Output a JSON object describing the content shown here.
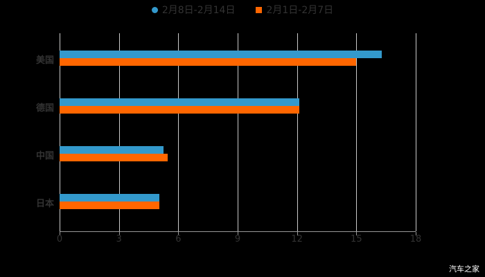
{
  "chart_data": {
    "type": "bar",
    "orientation": "horizontal",
    "title": "",
    "categories": [
      "美国",
      "德国",
      "中国",
      "日本"
    ],
    "series": [
      {
        "name": "2月8日-2月14日",
        "color": "#3399CC",
        "values": [
          16.3,
          12.1,
          5.25,
          5.05
        ]
      },
      {
        "name": "2月1日-2月7日",
        "color": "#FF6600",
        "values": [
          15.0,
          12.1,
          5.45,
          5.05
        ]
      }
    ],
    "xlabel": "",
    "ylabel": "",
    "xlim": [
      0,
      18
    ],
    "xticks": [
      "0",
      "3",
      "6",
      "9",
      "12",
      "15",
      "18"
    ],
    "grid": true,
    "legend_position": "top"
  },
  "legend": [
    {
      "label": "2月8日-2月14日",
      "color": "#3399CC",
      "marker": "circle"
    },
    {
      "label": "2月1日-2月7日",
      "color": "#FF6600",
      "marker": "square"
    }
  ],
  "watermark": "汽车之家"
}
